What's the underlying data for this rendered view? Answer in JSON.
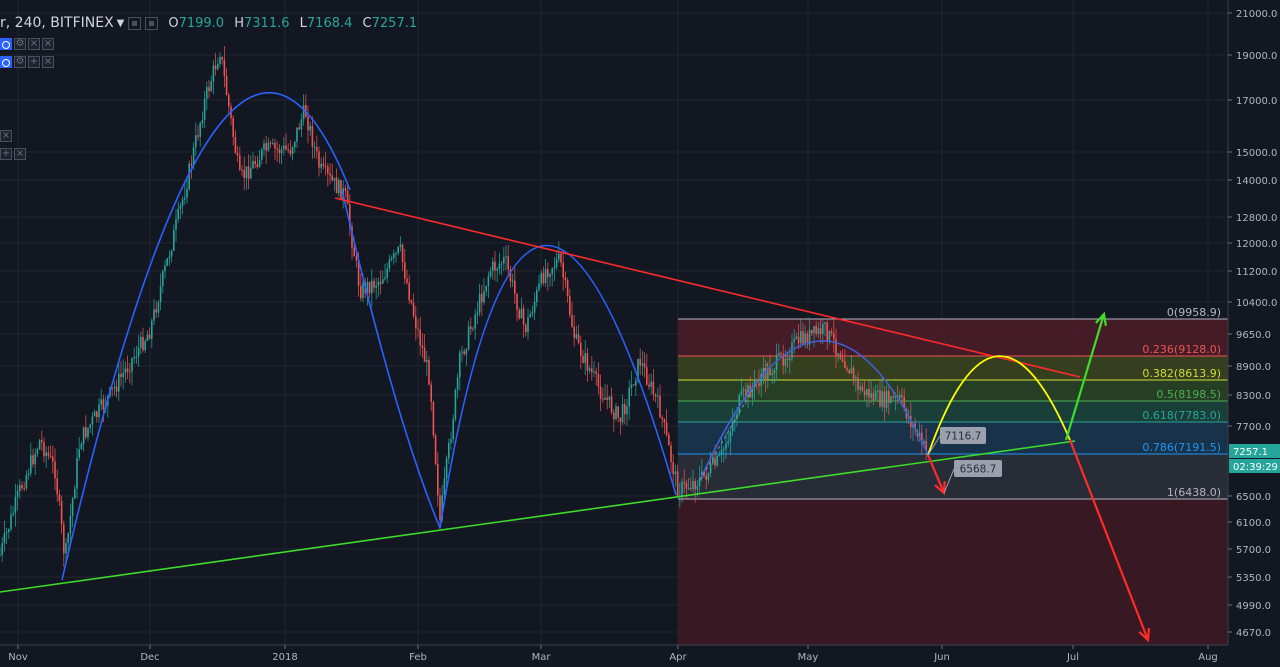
{
  "header": {
    "symbol": "r, 240, BITFINEX",
    "open_label": "O",
    "open": "7199.0",
    "high_label": "H",
    "high": "7311.6",
    "low_label": "L",
    "low": "7168.4",
    "close_label": "C",
    "close": "7257.1"
  },
  "colors": {
    "background": "#131722",
    "up": "#26a69a",
    "down": "#ef5350",
    "arc_blue": "#2962ff",
    "trend_red": "#ff2a2a",
    "trend_green": "#3ddc2a",
    "arc_yellow": "#ffff00",
    "fib_red": "#5a1d26",
    "fib_teal": "#1c4f4a"
  },
  "price_axis": {
    "ticks": [
      "21000.0",
      "19000.0",
      "17000.0",
      "15000.0",
      "14000.0",
      "12800.0",
      "12000.0",
      "11200.0",
      "10400.0",
      "9650.0",
      "8900.0",
      "8300.0",
      "7700.0",
      "6500.0",
      "6100.0",
      "5700.0",
      "5350.0",
      "4990.0",
      "4670.0"
    ],
    "last_price": "7257.1",
    "countdown": "02:39:29"
  },
  "time_axis": {
    "ticks": [
      "Nov",
      "Dec",
      "2018",
      "Feb",
      "Mar",
      "Apr",
      "May",
      "Jun",
      "Jul",
      "Aug"
    ]
  },
  "fib_levels": [
    {
      "label": "0(9958.9)",
      "ratio": "0",
      "price": 9958.9,
      "color": "#b2b5be"
    },
    {
      "label": "0.236(9128.0)",
      "ratio": "0.236",
      "price": 9128.0,
      "color": "#ef5350"
    },
    {
      "label": "0.382(8613.9)",
      "ratio": "0.382",
      "price": 8613.9,
      "color": "#cddc39"
    },
    {
      "label": "0.5(8198.5)",
      "ratio": "0.5",
      "price": 8198.5,
      "color": "#4caf50"
    },
    {
      "label": "0.618(7783.0)",
      "ratio": "0.618",
      "price": 7783.0,
      "color": "#26a69a"
    },
    {
      "label": "0.786(7191.5)",
      "ratio": "0.786",
      "price": 7191.5,
      "color": "#2196f3"
    },
    {
      "label": "1(6438.0)",
      "ratio": "1",
      "price": 6438.0,
      "color": "#b2b5be"
    }
  ],
  "annotations": [
    {
      "text": "7116.7"
    },
    {
      "text": "6568.7"
    }
  ],
  "icons": [
    "eye-icon",
    "settings-icon",
    "close-icon",
    "eye-icon",
    "add-icon",
    "close-icon"
  ]
}
